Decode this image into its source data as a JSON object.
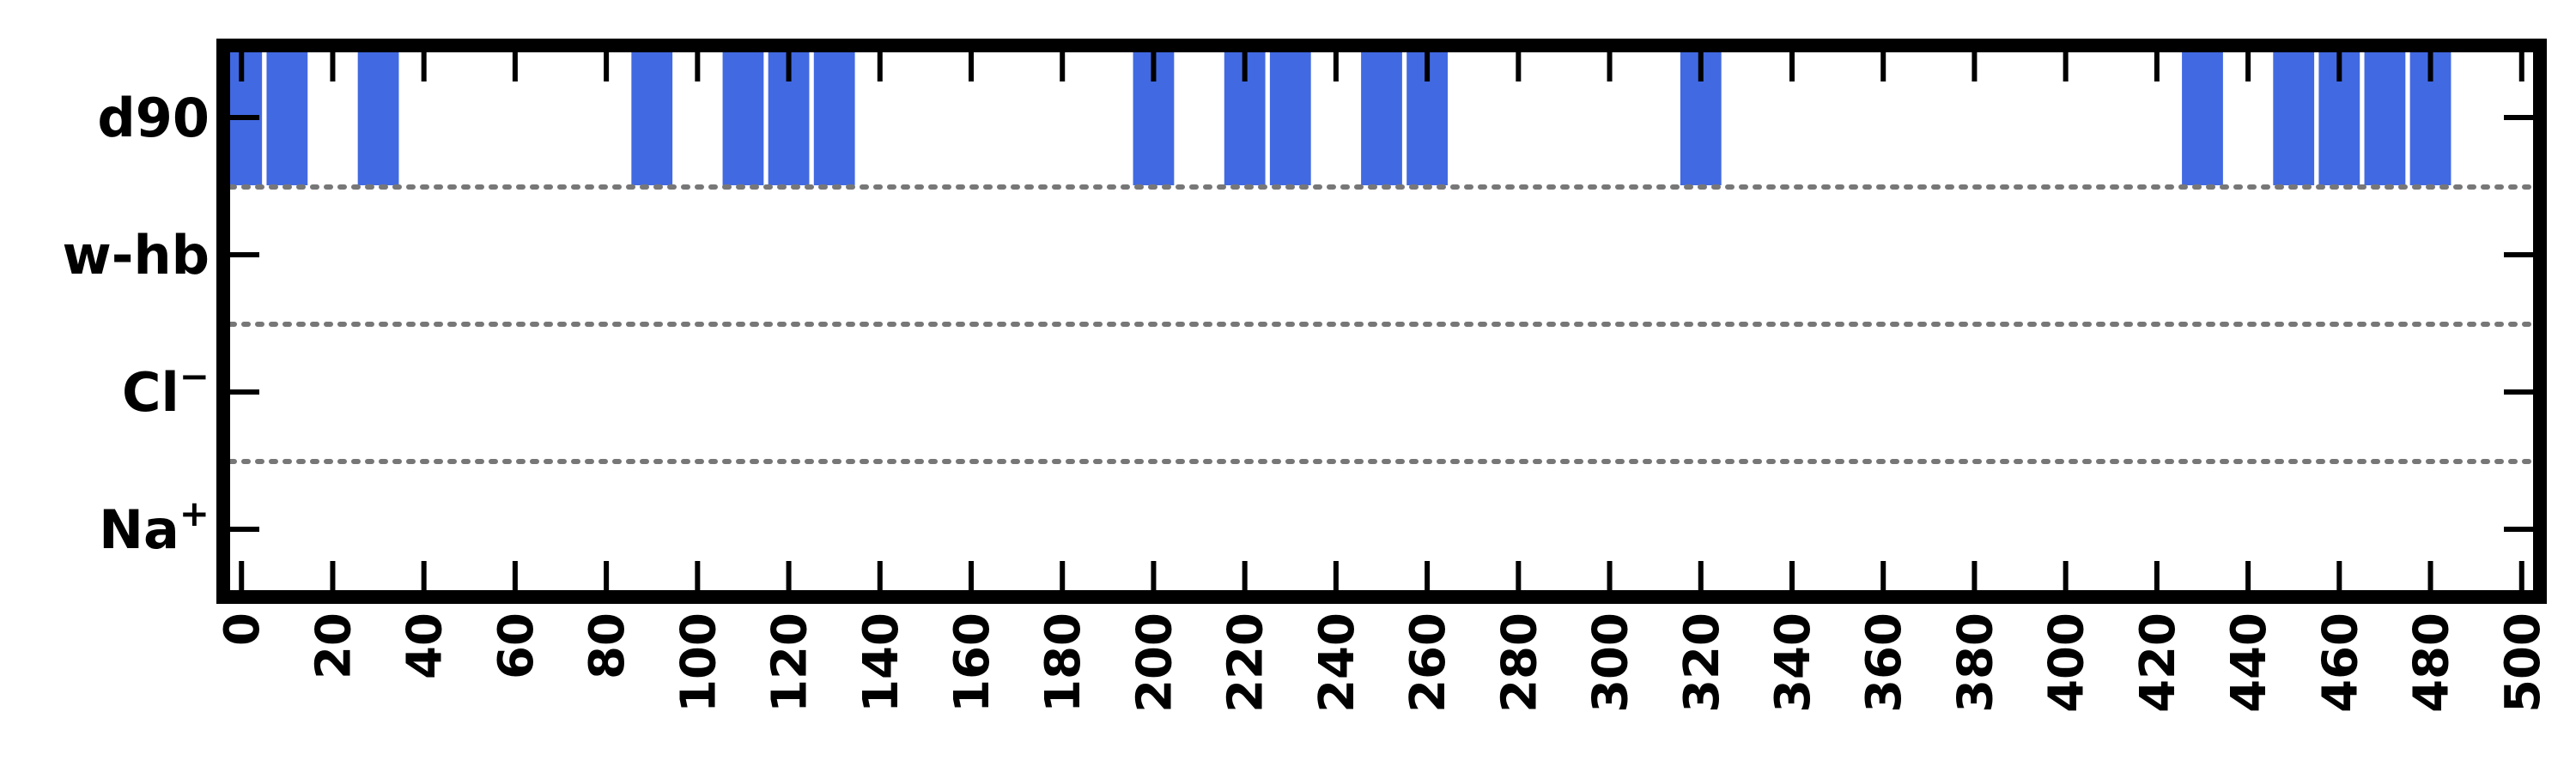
{
  "chart_data": {
    "type": "bar",
    "subtype": "event-raster",
    "title": "",
    "xlabel": "",
    "ylabel": "",
    "xlim": [
      -4,
      504
    ],
    "xticks": [
      0,
      20,
      40,
      60,
      80,
      100,
      120,
      140,
      160,
      180,
      200,
      220,
      240,
      260,
      280,
      300,
      320,
      340,
      360,
      380,
      400,
      420,
      440,
      460,
      480,
      500
    ],
    "rows": [
      {
        "label": "d90",
        "label_base": "d90",
        "label_sup": "",
        "events": [
          0,
          10,
          30,
          90,
          110,
          120,
          130,
          200,
          220,
          230,
          250,
          260,
          320,
          430,
          450,
          460,
          470,
          480
        ]
      },
      {
        "label": "w-hb",
        "label_base": "w-hb",
        "label_sup": "",
        "events": []
      },
      {
        "label": "Cl⁻",
        "label_base": "Cl",
        "label_sup": "−",
        "events": []
      },
      {
        "label": "Na⁺",
        "label_base": "Na",
        "label_sup": "+",
        "events": []
      }
    ],
    "event_width": 9,
    "bar_color": "#4169E1",
    "separator_style": "dotted",
    "grid": false,
    "legend": "none"
  }
}
